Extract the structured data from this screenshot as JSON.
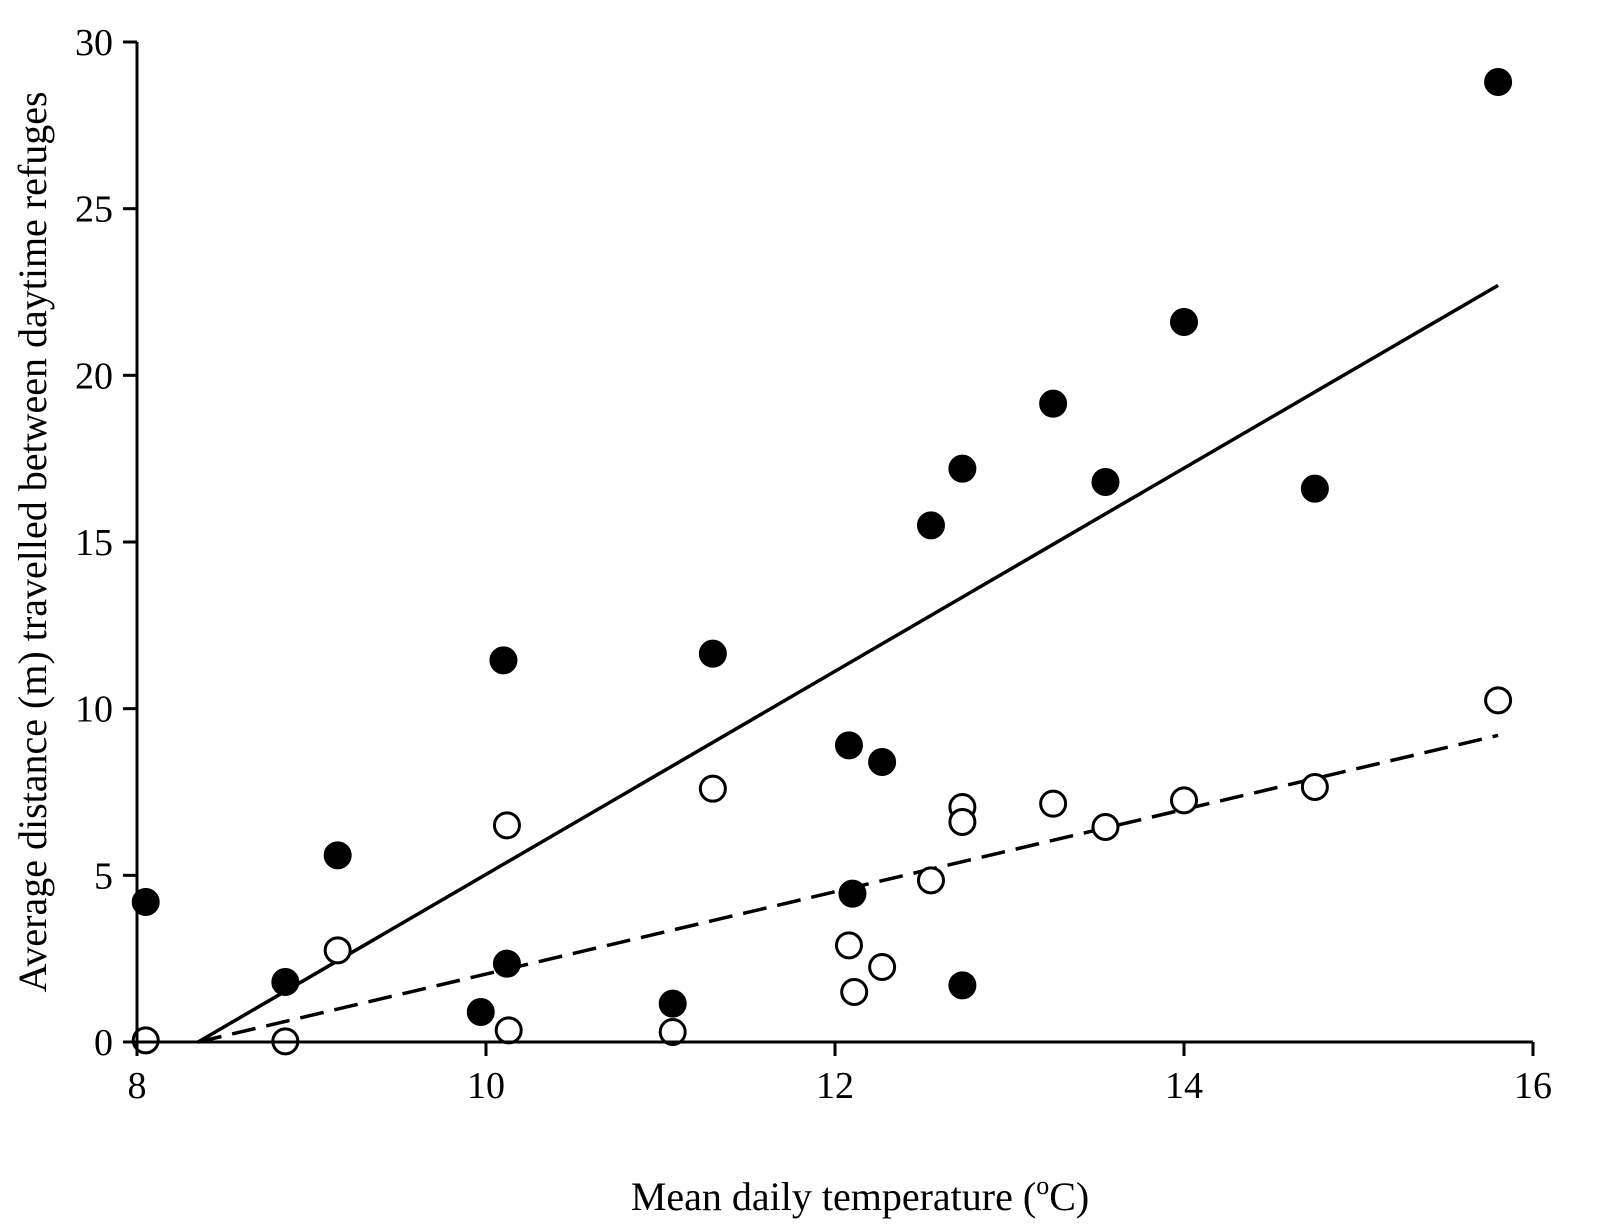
{
  "chart_data": {
    "type": "scatter",
    "title": "",
    "xlabel": "Mean daily temperature (",
    "xlabel_sup": "o",
    "xlabel_suffix": "C)",
    "ylabel": "Average distance (m) travelled between daytime refuges",
    "xlim": [
      8,
      16
    ],
    "ylim": [
      0,
      30
    ],
    "xticks": [
      "8",
      "10",
      "12",
      "14",
      "16"
    ],
    "yticks": [
      "0",
      "5",
      "10",
      "15",
      "20",
      "25",
      "30"
    ],
    "grid": false,
    "legend": "none",
    "series": [
      {
        "marker": "filled-circle",
        "color": "#000000",
        "x": [
          8.05,
          8.85,
          9.15,
          9.97,
          10.1,
          10.12,
          11.07,
          11.3,
          12.08,
          12.1,
          12.27,
          12.55,
          12.73,
          12.73,
          13.25,
          13.55,
          14.0,
          14.75,
          15.8
        ],
        "y": [
          4.2,
          1.8,
          5.6,
          0.9,
          11.45,
          2.35,
          1.15,
          11.65,
          8.9,
          4.45,
          8.4,
          15.5,
          17.2,
          1.7,
          19.15,
          16.8,
          21.6,
          16.6,
          28.8
        ],
        "fit": {
          "x": [
            8.35,
            15.8
          ],
          "y": [
            0,
            22.7
          ],
          "style": "solid"
        }
      },
      {
        "marker": "open-circle",
        "color": "#000000",
        "x": [
          8.05,
          8.85,
          9.15,
          10.12,
          10.13,
          11.07,
          11.3,
          12.08,
          12.11,
          12.27,
          12.55,
          12.73,
          12.73,
          13.25,
          13.55,
          14.0,
          14.75,
          15.8
        ],
        "y": [
          0.05,
          0.02,
          2.75,
          6.5,
          0.35,
          0.3,
          7.6,
          2.9,
          1.5,
          2.25,
          4.85,
          7.05,
          6.6,
          7.15,
          6.45,
          7.25,
          7.65,
          10.25
        ],
        "fit": {
          "x": [
            8.35,
            15.8
          ],
          "y": [
            0,
            9.2
          ],
          "style": "dashed"
        }
      }
    ]
  }
}
